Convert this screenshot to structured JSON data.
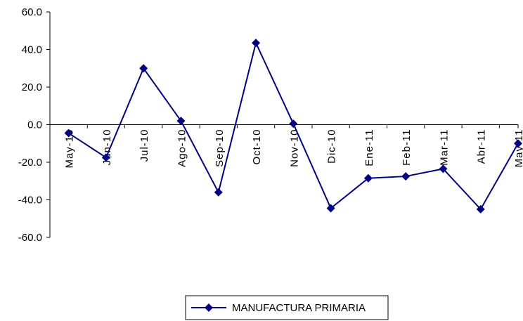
{
  "chart_data": {
    "type": "line",
    "categories": [
      "May-10",
      "Jun-10",
      "Jul-10",
      "Ago-10",
      "Sep-10",
      "Oct-10",
      "Nov-10",
      "Dic-10",
      "Ene-11",
      "Feb-11",
      "Mar-11",
      "Abr-11",
      "May-11"
    ],
    "series": [
      {
        "name": "MANUFACTURA PRIMARIA",
        "values": [
          -4.5,
          -17.5,
          30.0,
          2.0,
          -36.0,
          43.5,
          0.5,
          -44.5,
          -28.5,
          -27.5,
          -23.5,
          -45.0,
          -10.0
        ],
        "color": "#000080"
      }
    ],
    "ylim": [
      -60.0,
      60.0
    ],
    "yticks": [
      "60.0",
      "40.0",
      "20.0",
      "0.0",
      "-20.0",
      "-40.0",
      "-60.0"
    ],
    "grid": false,
    "legend_position": "bottom-center",
    "title": "",
    "xlabel": "",
    "ylabel": ""
  }
}
